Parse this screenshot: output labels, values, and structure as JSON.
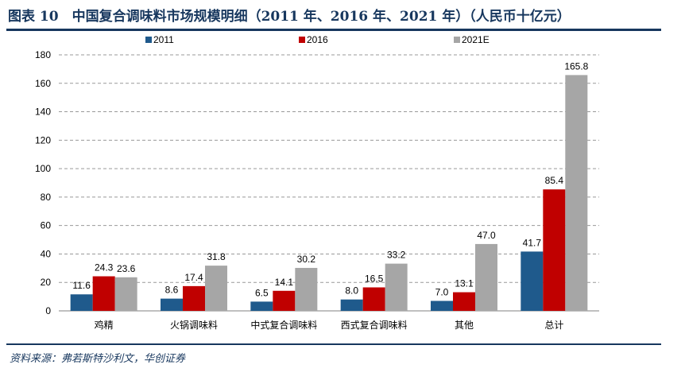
{
  "title": "图表 10　中国复合调味料市场规模明细（2011 年、2016 年、2021 年）（人民币十亿元）",
  "source": "资料来源：弗若斯特沙利文，华创证券",
  "chart_data": {
    "type": "bar",
    "categories": [
      "鸡精",
      "火锅调味料",
      "中式复合调味料",
      "西式复合调味料",
      "其他",
      "总计"
    ],
    "series": [
      {
        "name": "2011",
        "color": "#1f5a8c",
        "values": [
          11.6,
          8.6,
          6.5,
          8.0,
          7.0,
          41.7
        ]
      },
      {
        "name": "2016",
        "color": "#c00000",
        "values": [
          24.3,
          17.4,
          14.1,
          16.5,
          13.1,
          85.4
        ]
      },
      {
        "name": "2021E",
        "color": "#a6a6a6",
        "values": [
          23.6,
          31.8,
          30.2,
          33.2,
          47.0,
          165.8
        ]
      }
    ],
    "ylim": [
      0,
      180
    ],
    "yticks": [
      0,
      20,
      40,
      60,
      80,
      100,
      120,
      140,
      160,
      180
    ],
    "grid": true,
    "legend_position": "top"
  }
}
